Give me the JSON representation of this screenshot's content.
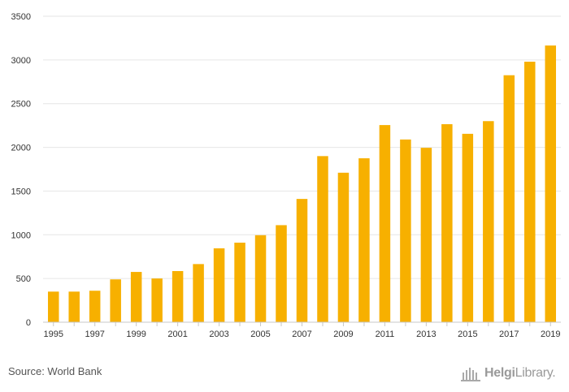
{
  "chart_data": {
    "type": "bar",
    "title": "",
    "xlabel": "",
    "ylabel": "",
    "categories": [
      "1995",
      "1996",
      "1997",
      "1998",
      "1999",
      "2000",
      "2001",
      "2002",
      "2003",
      "2004",
      "2005",
      "2006",
      "2007",
      "2008",
      "2009",
      "2010",
      "2011",
      "2012",
      "2013",
      "2014",
      "2015",
      "2016",
      "2017",
      "2018",
      "2019"
    ],
    "x_tick_labels": [
      "1995",
      "1997",
      "1999",
      "2001",
      "2003",
      "2005",
      "2007",
      "2009",
      "2011",
      "2013",
      "2015",
      "2017",
      "2019"
    ],
    "values": [
      350,
      350,
      360,
      490,
      575,
      500,
      585,
      665,
      845,
      910,
      995,
      1110,
      1410,
      1900,
      1710,
      1875,
      2255,
      2090,
      1995,
      2265,
      2155,
      2300,
      2825,
      2980,
      3165
    ],
    "ylim": [
      0,
      3500
    ],
    "y_ticks": [
      0,
      500,
      1000,
      1500,
      2000,
      2500,
      3000,
      3500
    ],
    "grid": true,
    "bar_color": "#F7B000",
    "grid_color": "#e6e6e6",
    "axis_color": "#c8c8c8"
  },
  "footer": {
    "source": "Source: World Bank",
    "logo_bold": "Helgi",
    "logo_light": "Library."
  }
}
